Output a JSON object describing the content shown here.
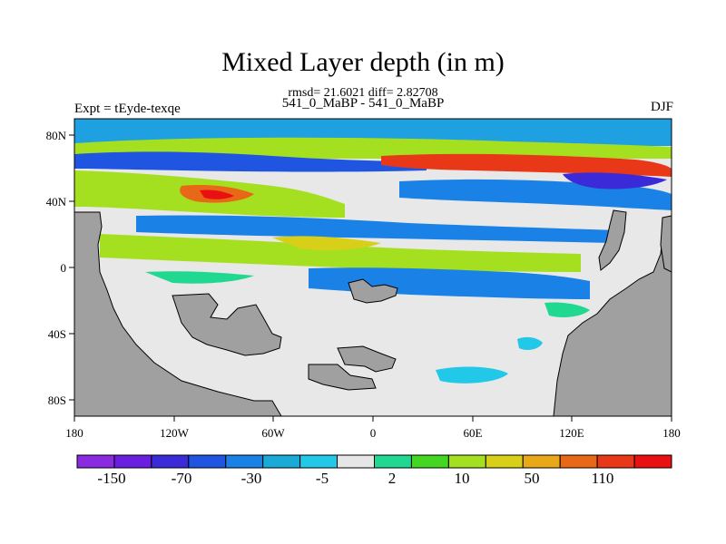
{
  "title": "Mixed Layer depth (in m)",
  "stats": "rmsd= 21.6021 diff= 2.82708",
  "subtitle": "541_0_MaBP - 541_0_MaBP",
  "experiment": "Expt = tEyde-texqe",
  "season": "DJF",
  "map": {
    "lon_ticks": [
      "180",
      "120W",
      "60W",
      "0",
      "60E",
      "120E",
      "180"
    ],
    "lat_ticks": [
      "80N",
      "40N",
      "0",
      "40S",
      "80S"
    ],
    "land_color": "#a0a0a0",
    "zero_color": "#e8e8e8"
  },
  "colorbar": {
    "colors": [
      "#8a2be2",
      "#6a1ee0",
      "#3a2ad8",
      "#1f55e0",
      "#1a82e6",
      "#1aaad8",
      "#22c8e8",
      "#e6e6e6",
      "#20d890",
      "#44d622",
      "#a4e020",
      "#d8d018",
      "#e8a818",
      "#e86818",
      "#e83818",
      "#e81010"
    ],
    "labels": [
      "-150",
      "-70",
      "-30",
      "-5",
      "2",
      "10",
      "50",
      "110"
    ]
  }
}
